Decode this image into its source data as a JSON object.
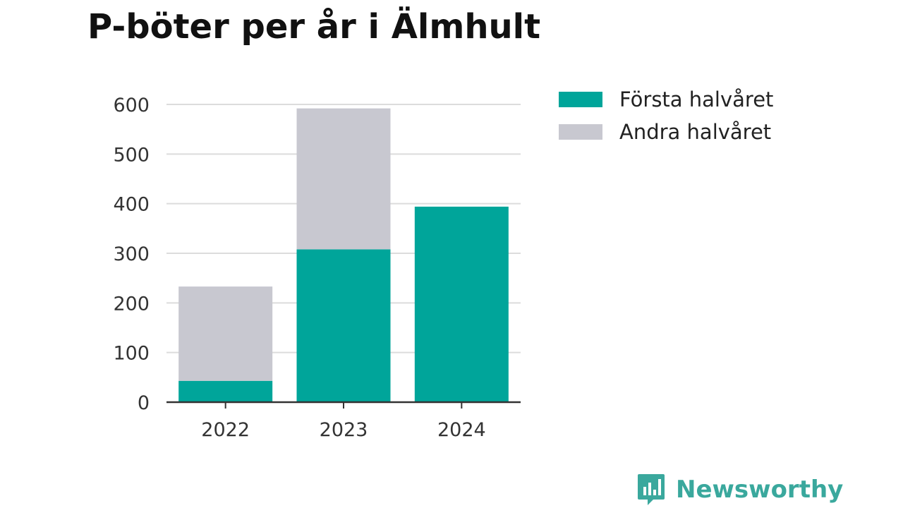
{
  "title": "P-böter per år i Älmhult",
  "colors": {
    "series1": "#00a59a",
    "series2": "#c8c8d0",
    "grid": "#dcdcdc",
    "axis": "#333333",
    "brand": "#3aa89d"
  },
  "brand": {
    "name": "Newsworthy",
    "icon": "newsworthy-logo-icon"
  },
  "chart_data": {
    "type": "bar",
    "stacked": true,
    "categories": [
      "2022",
      "2023",
      "2024"
    ],
    "series": [
      {
        "name": "Första halvåret",
        "values": [
          43,
          308,
          394
        ]
      },
      {
        "name": "Andra halvåret",
        "values": [
          190,
          284,
          0
        ]
      }
    ],
    "title": "P-böter per år i Älmhult",
    "xlabel": "",
    "ylabel": "",
    "ylim": [
      0,
      600
    ],
    "yticks": [
      0,
      100,
      200,
      300,
      400,
      500,
      600
    ],
    "grid": true,
    "legend": "top-right"
  }
}
